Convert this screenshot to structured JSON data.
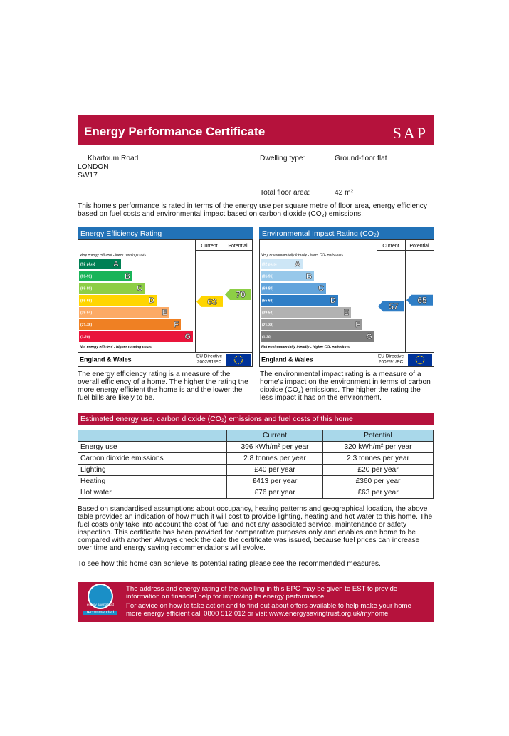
{
  "header": {
    "title": "Energy Performance Certificate",
    "logo": "SAP"
  },
  "address": [
    "Khartoum Road",
    "LONDON",
    "SW17"
  ],
  "details": [
    {
      "label": "Dwelling type:",
      "value": "Ground-floor flat"
    },
    {
      "label": "Total floor area:",
      "value": "42 m²"
    }
  ],
  "intro": "This home's performance is rated in terms of the energy use per square metre of floor area, energy efficiency based on fuel costs and environmental impact based on carbon dioxide (CO₂) emissions.",
  "ratings": [
    {
      "title": "Energy Efficiency Rating",
      "columns": [
        "Current",
        "Potential"
      ],
      "top_note": "Very energy efficient - lower running costs",
      "bottom_note": "Not energy efficient - higher running costs",
      "bands": [
        {
          "range": "(92 plus)",
          "letter": "A",
          "color": "#008054"
        },
        {
          "range": "(81-91)",
          "letter": "B",
          "color": "#19b459"
        },
        {
          "range": "(69-80)",
          "letter": "C",
          "color": "#8dce46"
        },
        {
          "range": "(55-68)",
          "letter": "D",
          "color": "#ffd500"
        },
        {
          "range": "(39-54)",
          "letter": "E",
          "color": "#fcaa65"
        },
        {
          "range": "(21-38)",
          "letter": "F",
          "color": "#ef8023"
        },
        {
          "range": "(1-20)",
          "letter": "G",
          "color": "#e9153b"
        }
      ],
      "current": 63,
      "potential": 70,
      "region": "England & Wales",
      "directive": [
        "EU Directive",
        "2002/91/EC"
      ],
      "description": "The energy efficiency rating is a measure of the overall efficiency of a home. The higher the rating the more energy efficient the home is and the lower the fuel bills are likely to be."
    },
    {
      "title": "Environmental Impact Rating (CO₂)",
      "columns": [
        "Current",
        "Potential"
      ],
      "top_note": "Very environmentally friendly - lower CO₂ emissions",
      "bottom_note": "Not environmentally friendly - higher CO₂ emissions",
      "bands": [
        {
          "range": "(92 plus)",
          "letter": "A",
          "color": "#cde6f6"
        },
        {
          "range": "(81-91)",
          "letter": "B",
          "color": "#97c8ea"
        },
        {
          "range": "(69-80)",
          "letter": "C",
          "color": "#62a4dc"
        },
        {
          "range": "(55-68)",
          "letter": "D",
          "color": "#2f7ec6"
        },
        {
          "range": "(39-54)",
          "letter": "E",
          "color": "#b2b2b2"
        },
        {
          "range": "(21-38)",
          "letter": "F",
          "color": "#999999"
        },
        {
          "range": "(1-20)",
          "letter": "G",
          "color": "#7d7d7d"
        }
      ],
      "current": 57,
      "potential": 65,
      "region": "England & Wales",
      "directive": [
        "EU Directive",
        "2002/91/EC"
      ],
      "description": "The environmental impact rating is a measure of a home's impact on the environment in terms of carbon dioxide (CO₂) emissions. The higher the rating the less impact it has on the environment."
    }
  ],
  "estimates": {
    "title": "Estimated energy use, carbon dioxide (CO₂) emissions and fuel costs of this home",
    "columns": [
      "Current",
      "Potential"
    ],
    "rows": [
      [
        "Energy use",
        "396 kWh/m² per year",
        "320 kWh/m² per year"
      ],
      [
        "Carbon dioxide emissions",
        "2.8 tonnes per year",
        "2.3 tonnes per year"
      ],
      [
        "Lighting",
        "£40 per year",
        "£20 per year"
      ],
      [
        "Heating",
        "£413 per year",
        "£360 per year"
      ],
      [
        "Hot water",
        "£76 per year",
        "£63 per year"
      ]
    ]
  },
  "notes": [
    "Based on standardised assumptions about occupancy, heating patterns and geographical location, the above table provides an indication of how much it will cost to provide lighting, heating and hot water to this home. The fuel costs only take into account the cost of fuel and not any associated service, maintenance or safety inspection. This certificate has been provided for comparative purposes only and enables one home to be compared with another. Always check the date the certificate was issued, because fuel prices can increase over time and energy saving recommendations will evolve.",
    "To see how this home can achieve its potential rating please see the recommended measures."
  ],
  "footer": {
    "logo": [
      "energy saving trust",
      "recommended"
    ],
    "text": [
      "The address and energy rating of the dwelling in this EPC may be given to EST to provide information on financial help for improving its energy performance.",
      "For advice on how to take action and to find out about offers available to help make your home more energy efficient call 0800 512 012 or visit www.energysavingtrust.org.uk/myhome"
    ]
  }
}
